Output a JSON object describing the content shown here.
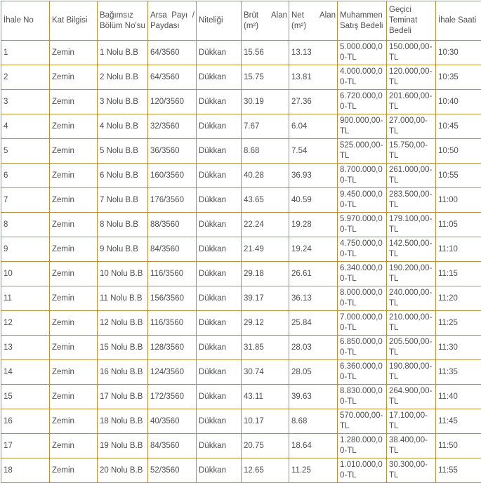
{
  "colors": {
    "border": "#B8923C",
    "text": "#4F4F4F",
    "background": "#FFFFFF"
  },
  "table": {
    "columns": [
      {
        "key": "ihale-no",
        "label": "İhale No"
      },
      {
        "key": "kat-bilgisi",
        "label": "Kat Bilgisi"
      },
      {
        "key": "bagimsiz-bolum-nosu",
        "label": "Bağımsız Bölüm No'su"
      },
      {
        "key": "arsa-payi-paydasi",
        "label": "Arsa Payı / Paydası"
      },
      {
        "key": "niteligi",
        "label": "Niteliği"
      },
      {
        "key": "brut-alan",
        "label": "Brüt Alan (m²)"
      },
      {
        "key": "net-alan",
        "label": "Net Alan (m²)"
      },
      {
        "key": "muhammen-satis-bedeli",
        "label": "Muhammen Satış Bedeli"
      },
      {
        "key": "gecici-teminat-bedeli",
        "label": "Geçici Teminat Bedeli"
      },
      {
        "key": "ihale-saati",
        "label": "İhale Saati"
      }
    ],
    "rows": [
      [
        "1",
        "Zemin",
        "1 Nolu B.B",
        "64/3560",
        "Dükkan",
        "15.56",
        "13.13",
        "5.000.000,00-TL",
        "150.000,00-TL",
        "10:30"
      ],
      [
        "2",
        "Zemin",
        "2 Nolu B.B",
        "64/3560",
        "Dükkan",
        "15.75",
        "13.81",
        "4.000.000,00-TL",
        "120.000,00-TL",
        "10:35"
      ],
      [
        "3",
        "Zemin",
        "3 Nolu B.B",
        "120/3560",
        "Dükkan",
        "30.19",
        "27.36",
        "6.720.000,00-TL",
        "201.600,00-TL",
        "10:40"
      ],
      [
        "4",
        "Zemin",
        "4 Nolu B.B",
        "32/3560",
        "Dükkan",
        "7.67",
        "6.04",
        "900.000,00-TL",
        "27.000,00-TL",
        "10:45"
      ],
      [
        "5",
        "Zemin",
        "5 Nolu B.B",
        "36/3560",
        "Dükkan",
        "8.68",
        "7.54",
        "525.000,00-TL",
        "15.750,00-TL",
        "10:50"
      ],
      [
        "6",
        "Zemin",
        "6 Nolu B.B",
        "160/3560",
        "Dükkan",
        "40.28",
        "36.93",
        "8.700.000,00-TL",
        "261.000,00-TL",
        "10:55"
      ],
      [
        "7",
        "Zemin",
        "7 Nolu B.B",
        "176/3560",
        "Dükkan",
        "43.65",
        "40.59",
        "9.450.000,00-TL",
        "283.500,00-TL",
        "11:00"
      ],
      [
        "8",
        "Zemin",
        "8 Nolu B.B",
        "88/3560",
        "Dükkan",
        "22.24",
        "19.28",
        "5.970.000,00-TL",
        "179.100,00-TL",
        "11:05"
      ],
      [
        "9",
        "Zemin",
        "9 Nolu B.B",
        "84/3560",
        "Dükkan",
        "21.49",
        "19.24",
        "4.750.000,00-TL",
        "142.500,00-TL",
        "11:10"
      ],
      [
        "10",
        "Zemin",
        "10 Nolu B.B",
        "116/3560",
        "Dükkan",
        "29.18",
        "26.61",
        "6.340.000,00-TL",
        "190.200,00-TL",
        "11:15"
      ],
      [
        "11",
        "Zemin",
        "11 Nolu B.B",
        "156/3560",
        "Dükkan",
        "39.17",
        "36.13",
        "8.000.000,00-TL",
        "240.000,00-TL",
        "11:20"
      ],
      [
        "12",
        "Zemin",
        "12 Nolu B.B",
        "116/3560",
        "Dükkan",
        "29.12",
        "25.84",
        "7.000.000,00-TL",
        "210.000,00-TL",
        "11:25"
      ],
      [
        "13",
        "Zemin",
        "15 Nolu B.B",
        "128/3560",
        "Dükkan",
        "31.85",
        "28.03",
        "6.850.000,00-TL",
        "205.500,00-TL",
        "11:30"
      ],
      [
        "14",
        "Zemin",
        "16 Nolu B.B",
        "124/3560",
        "Dükkan",
        "30.74",
        "28.05",
        "6.360.000,00-TL",
        "190.800,00-TL",
        "11:35"
      ],
      [
        "15",
        "Zemin",
        "17 Nolu B.B",
        "172/3560",
        "Dükkan",
        "43.11",
        "39.63",
        "8.830.000,00-TL",
        "264.900,00-TL",
        "11:40"
      ],
      [
        "16",
        "Zemin",
        "18 Nolu B.B",
        "40/3560",
        "Dükkan",
        "10.17",
        "8.68",
        "570.000,00-TL",
        "17.100,00-TL",
        "11:45"
      ],
      [
        "17",
        "Zemin",
        "19 Nolu B.B",
        "84/3560",
        "Dükkan",
        "20.75",
        "18.64",
        "1.280.000,00-TL",
        "38.400,00-TL",
        "11:50"
      ],
      [
        "18",
        "Zemin",
        "20 Nolu B.B",
        "52/3560",
        "Dükkan",
        "12.65",
        "11.25",
        "1.010.000,00-TL",
        "30.300,00-TL",
        "11:55"
      ]
    ]
  }
}
